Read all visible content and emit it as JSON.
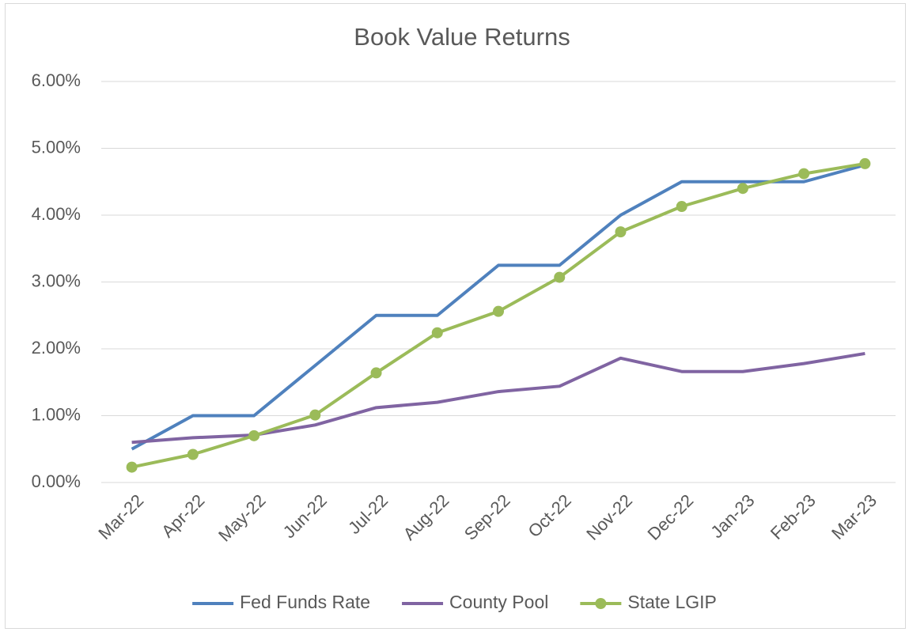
{
  "chart_data": {
    "type": "line",
    "title": "Book Value Returns",
    "categories": [
      "Mar-22",
      "Apr-22",
      "May-22",
      "Jun-22",
      "Jul-22",
      "Aug-22",
      "Sep-22",
      "Oct-22",
      "Nov-22",
      "Dec-22",
      "Jan-23",
      "Feb-23",
      "Mar-23"
    ],
    "series": [
      {
        "name": "Fed Funds Rate",
        "color": "#4f81bd",
        "marker": false,
        "values": [
          0.5,
          1.0,
          1.0,
          1.75,
          2.5,
          2.5,
          3.25,
          3.25,
          4.0,
          4.5,
          4.5,
          4.5,
          4.75
        ]
      },
      {
        "name": "County Pool",
        "color": "#8064a2",
        "marker": false,
        "values": [
          0.6,
          0.67,
          0.71,
          0.86,
          1.12,
          1.2,
          1.36,
          1.44,
          1.86,
          1.66,
          1.66,
          1.78,
          1.93
        ]
      },
      {
        "name": "State LGIP",
        "color": "#9bbb59",
        "marker": true,
        "values": [
          0.23,
          0.42,
          0.7,
          1.01,
          1.64,
          2.24,
          2.56,
          3.07,
          3.75,
          4.13,
          4.4,
          4.62,
          4.77
        ]
      }
    ],
    "ylim": [
      0,
      6
    ],
    "yticks": [
      {
        "value": 0,
        "label": "0.00%"
      },
      {
        "value": 1,
        "label": "1.00%"
      },
      {
        "value": 2,
        "label": "2.00%"
      },
      {
        "value": 3,
        "label": "3.00%"
      },
      {
        "value": 4,
        "label": "4.00%"
      },
      {
        "value": 5,
        "label": "5.00%"
      },
      {
        "value": 6,
        "label": "6.00%"
      }
    ],
    "grid": true,
    "legend": "bottom"
  }
}
